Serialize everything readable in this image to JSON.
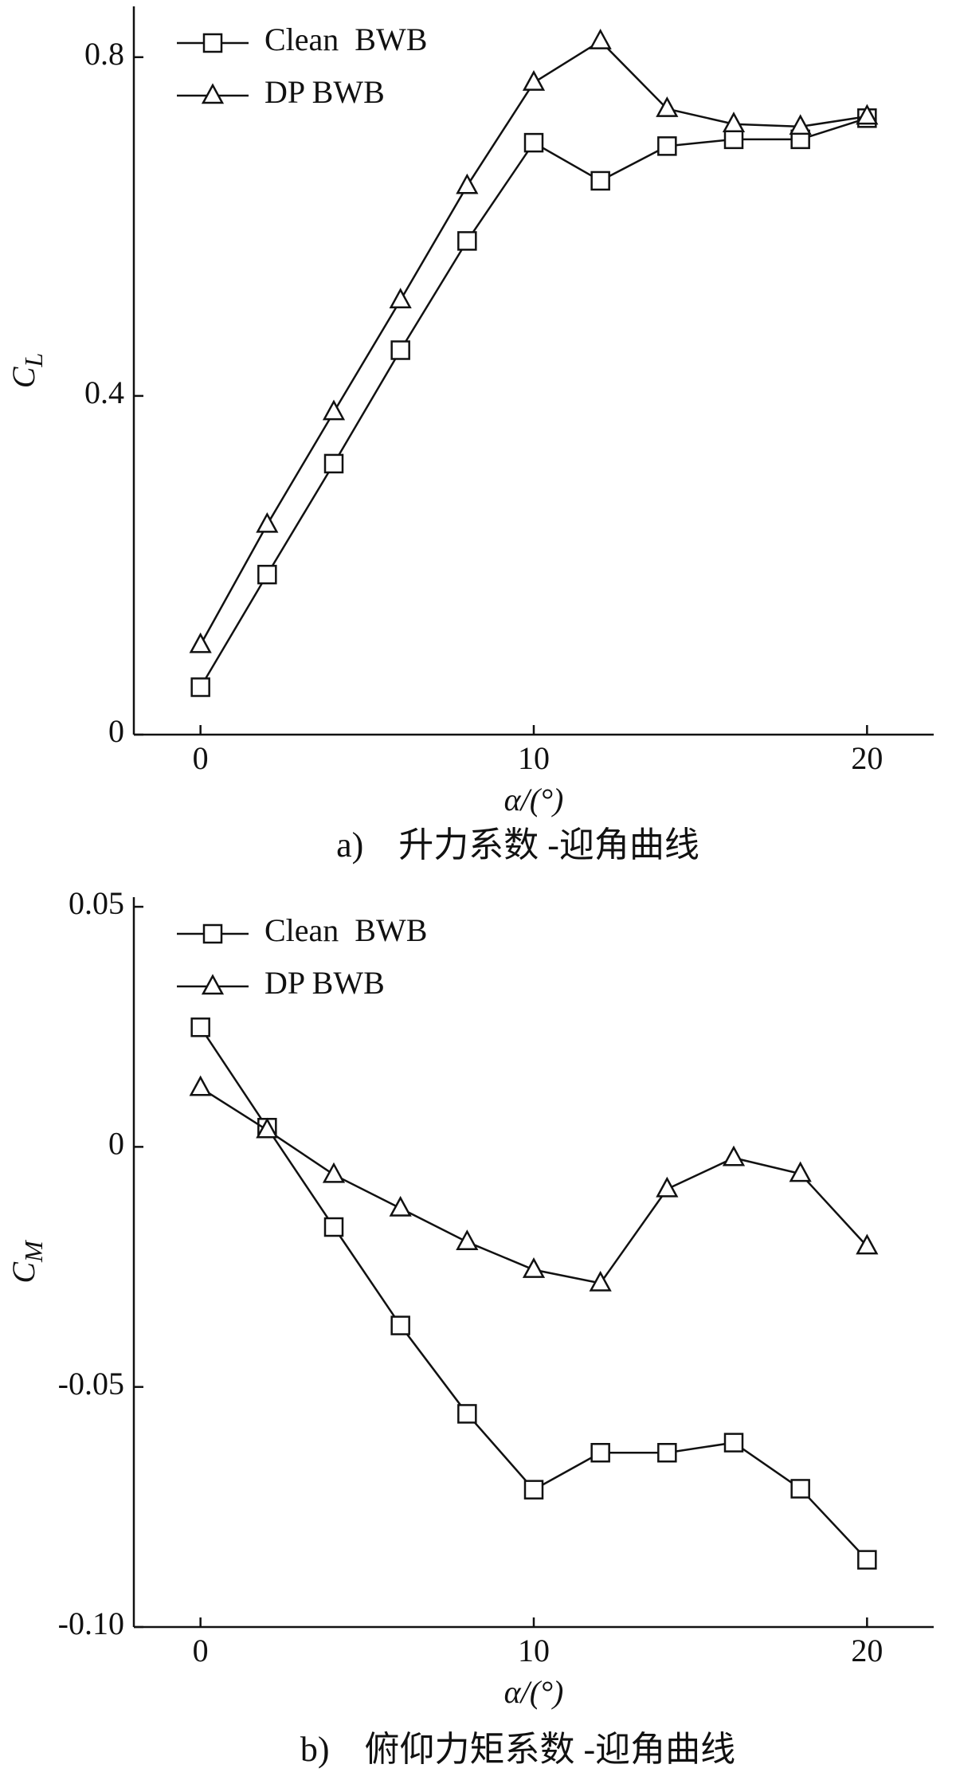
{
  "chart_data": [
    {
      "type": "line",
      "caption": "a)　升力系数 -迎角曲线",
      "x_label": "α/(°)",
      "y_label": "C",
      "y_label_subscript": "L",
      "x": [
        0,
        2,
        4,
        6,
        8,
        10,
        12,
        14,
        16,
        18,
        20
      ],
      "series": [
        {
          "name": "Clean  BWB",
          "color": "#111111",
          "marker": "square",
          "values": [
            0.056,
            0.189,
            0.32,
            0.454,
            0.583,
            0.699,
            0.654,
            0.695,
            0.703,
            0.703,
            0.728
          ]
        },
        {
          "name": "DP BWB",
          "color": "#111111",
          "marker": "triangle",
          "values": [
            0.106,
            0.248,
            0.381,
            0.513,
            0.648,
            0.77,
            0.819,
            0.739,
            0.721,
            0.718,
            0.73
          ]
        }
      ],
      "xlim": [
        -2,
        22
      ],
      "ylim": [
        0,
        0.86
      ],
      "xticks": [
        0,
        10,
        20
      ],
      "yticks": [
        0,
        0.4,
        0.8
      ],
      "legend": "upper left"
    },
    {
      "type": "line",
      "caption": "b)　俯仰力矩系数 -迎角曲线",
      "x_label": "α/(°)",
      "y_label": "C",
      "y_label_subscript": "M",
      "x": [
        0,
        2,
        4,
        6,
        8,
        10,
        12,
        14,
        16,
        18,
        20
      ],
      "series": [
        {
          "name": "Clean  BWB",
          "color": "#111111",
          "marker": "square",
          "values": [
            0.0249,
            0.004,
            -0.0167,
            -0.0372,
            -0.0556,
            -0.0714,
            -0.0637,
            -0.0637,
            -0.0616,
            -0.0712,
            -0.086
          ]
        },
        {
          "name": "DP BWB",
          "color": "#111111",
          "marker": "triangle",
          "values": [
            0.0123,
            0.0035,
            -0.0058,
            -0.0128,
            -0.0198,
            -0.0256,
            -0.0284,
            -0.0088,
            -0.0023,
            -0.0056,
            -0.0207
          ]
        }
      ],
      "xlim": [
        -2,
        22
      ],
      "ylim": [
        -0.1,
        0.052
      ],
      "xticks": [
        0,
        10,
        20
      ],
      "yticks": [
        {
          "value": -0.1,
          "label": "-0.10"
        },
        -0.05,
        0,
        0.05
      ],
      "legend": "upper left"
    }
  ]
}
